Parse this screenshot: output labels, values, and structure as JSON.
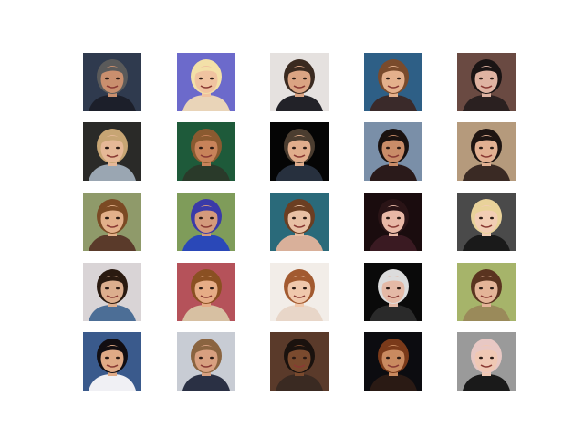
{
  "figure": {
    "background": "#ffffff",
    "rows": 5,
    "cols": 5,
    "images": [
      {
        "label": "portrait-man-dark-suit",
        "bg": "#2f3a4e",
        "skin": "#c98f6e",
        "hair": "#5a5a5a",
        "shirt": "#1c1f2a"
      },
      {
        "label": "portrait-blonde-woman",
        "bg": "#6c6acb",
        "skin": "#f0c3a0",
        "hair": "#f3e0a8",
        "shirt": "#e9d4b8"
      },
      {
        "label": "portrait-man-brown-hair",
        "bg": "#e5e1df",
        "skin": "#dba483",
        "hair": "#3a2a20",
        "shirt": "#222228"
      },
      {
        "label": "portrait-woman-brown-hair",
        "bg": "#2e5f86",
        "skin": "#e4b08c",
        "hair": "#7a4b2c",
        "shirt": "#3a2a2a"
      },
      {
        "label": "portrait-dark-hair-woman",
        "bg": "#6a4a42",
        "skin": "#dfb3a2",
        "hair": "#1a1414",
        "shirt": "#2a2020"
      },
      {
        "label": "portrait-man-curly-hair",
        "bg": "#2a2a28",
        "skin": "#e6b897",
        "hair": "#c7a574",
        "shirt": "#9aa6b2"
      },
      {
        "label": "portrait-man-smiling-green",
        "bg": "#1e5a3a",
        "skin": "#c8835a",
        "hair": "#8a5a30",
        "shirt": "#2a3a2a"
      },
      {
        "label": "portrait-man-black-background",
        "bg": "#050505",
        "skin": "#e1ad8c",
        "hair": "#4b3d30",
        "shirt": "#27303e"
      },
      {
        "label": "portrait-woman-dark-hair",
        "bg": "#7a8fa8",
        "skin": "#c98c68",
        "hair": "#1a1210",
        "shirt": "#2a1a1a"
      },
      {
        "label": "portrait-woman-tan-background",
        "bg": "#b59a7c",
        "skin": "#e2b092",
        "hair": "#1e1512",
        "shirt": "#3a2a24"
      },
      {
        "label": "portrait-woman-long-hair",
        "bg": "#8f9a6a",
        "skin": "#e3b08a",
        "hair": "#7b4a24",
        "shirt": "#5a3a2a"
      },
      {
        "label": "portrait-cyclist-helmet",
        "bg": "#7f9c5a",
        "skin": "#d49a7c",
        "hair": "#3a3aa8",
        "shirt": "#2a48b8"
      },
      {
        "label": "portrait-woman-lying",
        "bg": "#2a6a7a",
        "skin": "#e8c0a4",
        "hair": "#6b3e22",
        "shirt": "#d9b09a"
      },
      {
        "label": "portrait-woman-curly-dark",
        "bg": "#1a0c0e",
        "skin": "#e8b8a6",
        "hair": "#2a1416",
        "shirt": "#3a1a22"
      },
      {
        "label": "portrait-blonde-woman-smile",
        "bg": "#4a4a4a",
        "skin": "#f2cdb4",
        "hair": "#e9d29a",
        "shirt": "#1a1a1a"
      },
      {
        "label": "portrait-man-playful",
        "bg": "#d9d4d6",
        "skin": "#dcae8e",
        "hair": "#2a1a10",
        "shirt": "#4c6e96"
      },
      {
        "label": "portrait-woman-auburn",
        "bg": "#b5525a",
        "skin": "#e6ac86",
        "hair": "#8a5022",
        "shirt": "#d7c0a2"
      },
      {
        "label": "portrait-woman-light",
        "bg": "#f2ede8",
        "skin": "#f0c8ac",
        "hair": "#a25a30",
        "shirt": "#e8d6c8"
      },
      {
        "label": "portrait-older-woman-glasses",
        "bg": "#0a0a0a",
        "skin": "#e4b9a6",
        "hair": "#dcdcdc",
        "shirt": "#2a2a2a"
      },
      {
        "label": "portrait-woman-curly-brown",
        "bg": "#a6b46a",
        "skin": "#e4b498",
        "hair": "#5a3420",
        "shirt": "#9a8a5a"
      },
      {
        "label": "portrait-young-man",
        "bg": "#3a5a8c",
        "skin": "#e0aa86",
        "hair": "#120e12",
        "shirt": "#f0f0f4"
      },
      {
        "label": "portrait-man-speaking-sign",
        "bg": "#c8ccd4",
        "skin": "#d8a080",
        "hair": "#8a6440",
        "shirt": "#2a3044"
      },
      {
        "label": "portrait-woman-dark-skin",
        "bg": "#5a3a2a",
        "skin": "#7a4a2e",
        "hair": "#1a120e",
        "shirt": "#3a2a22"
      },
      {
        "label": "portrait-man-long-hair",
        "bg": "#0c0c10",
        "skin": "#c98a60",
        "hair": "#7a3a1a",
        "shirt": "#2a1a14"
      },
      {
        "label": "portrait-woman-pink-hair",
        "bg": "#9a9a9a",
        "skin": "#f0c8b4",
        "hair": "#e8c8c4",
        "shirt": "#1a1a1a"
      }
    ]
  }
}
